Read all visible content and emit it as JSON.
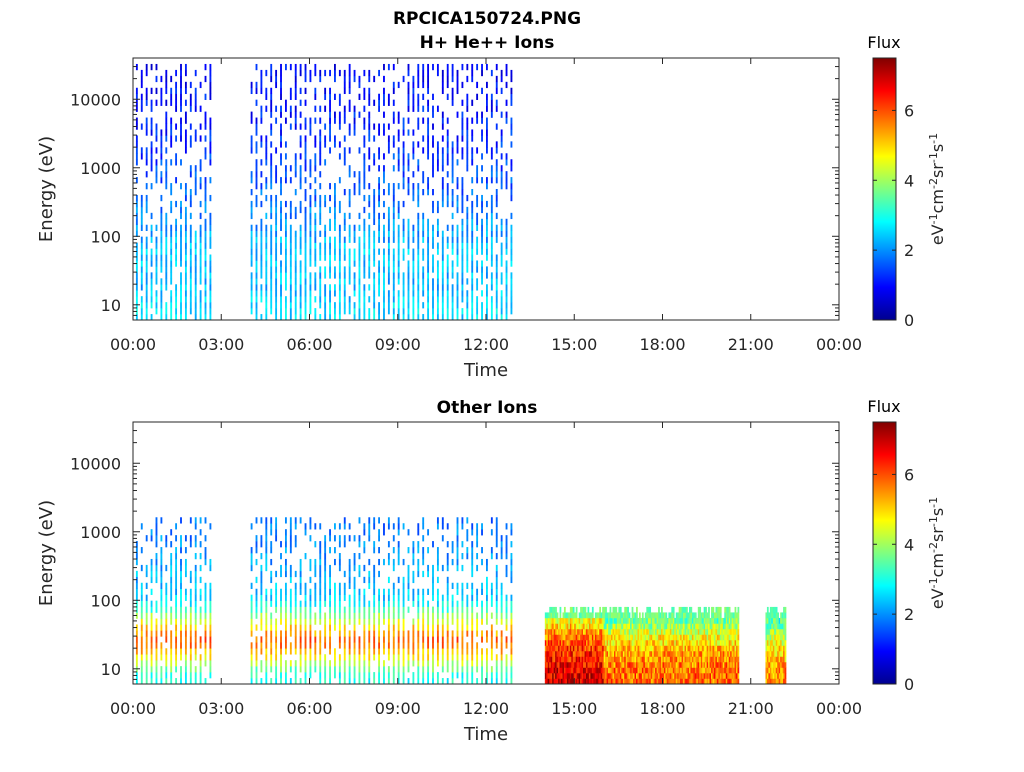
{
  "figure": {
    "title_line1": "RPCICA150724.PNG",
    "title_line2": "H+ He++ Ions"
  },
  "chart_data": [
    {
      "type": "heatmap",
      "title": "H+ He++ Ions",
      "xlabel": "Time",
      "ylabel": "Energy (eV)",
      "x_tick_labels": [
        "00:00",
        "03:00",
        "06:00",
        "09:00",
        "12:00",
        "15:00",
        "18:00",
        "21:00",
        "00:00"
      ],
      "xlim_hours": [
        0,
        24
      ],
      "y_scale": "log",
      "y_tick_values": [
        10,
        100,
        1000,
        10000
      ],
      "y_tick_labels": [
        "10",
        "100",
        "1000",
        "10000"
      ],
      "ylim": [
        6,
        40000
      ],
      "colorbar": {
        "title": "Flux",
        "label": "eV-1cm-2sr-1s-1",
        "ticks": [
          "0",
          "2",
          "4",
          "6"
        ],
        "range": [
          0,
          7.5
        ],
        "colormap": "jet"
      },
      "data_coverage_hours": [
        [
          0.1,
          2.65
        ],
        [
          4.0,
          12.9
        ]
      ],
      "sweep_period_minutes": 10,
      "flux_profile_by_energy": [
        {
          "energy_eV": 8,
          "flux": 2.6
        },
        {
          "energy_eV": 20,
          "flux": 2.3
        },
        {
          "energy_eV": 60,
          "flux": 2.4
        },
        {
          "energy_eV": 120,
          "flux": 2.1
        },
        {
          "energy_eV": 500,
          "flux": 1.6
        },
        {
          "energy_eV": 3000,
          "flux": 1.2
        },
        {
          "energy_eV": 15000,
          "flux": 1.0
        },
        {
          "energy_eV": 35000,
          "flux": 0.9
        }
      ]
    },
    {
      "type": "heatmap",
      "title": "Other Ions",
      "xlabel": "Time",
      "ylabel": "Energy (eV)",
      "x_tick_labels": [
        "00:00",
        "03:00",
        "06:00",
        "09:00",
        "12:00",
        "15:00",
        "18:00",
        "21:00",
        "00:00"
      ],
      "xlim_hours": [
        0,
        24
      ],
      "y_scale": "log",
      "y_tick_values": [
        10,
        100,
        1000,
        10000
      ],
      "y_tick_labels": [
        "10",
        "100",
        "1000",
        "10000"
      ],
      "ylim": [
        6,
        40000
      ],
      "colorbar": {
        "title": "Flux",
        "label": "eV-1cm-2sr-1s-1",
        "ticks": [
          "0",
          "2",
          "4",
          "6"
        ],
        "range": [
          0,
          7.5
        ],
        "colormap": "jet"
      },
      "data_coverage_hours": [
        [
          0.1,
          2.65
        ],
        [
          4.0,
          12.9
        ]
      ],
      "sweep_period_minutes": 10,
      "flux_profile_by_energy": [
        {
          "energy_eV": 8,
          "flux": 3.0
        },
        {
          "energy_eV": 15,
          "flux": 4.8
        },
        {
          "energy_eV": 25,
          "flux": 6.0
        },
        {
          "energy_eV": 40,
          "flux": 5.0
        },
        {
          "energy_eV": 100,
          "flux": 2.5
        },
        {
          "energy_eV": 500,
          "flux": 2.0
        },
        {
          "energy_eV": 1500,
          "flux": 1.8
        }
      ],
      "continuous_blocks": [
        {
          "start_hour": 14.0,
          "end_hour": 16.0,
          "energy_range_eV": [
            6,
            80
          ],
          "flux": 6.8
        },
        {
          "start_hour": 16.0,
          "end_hour": 20.6,
          "energy_range_eV": [
            6,
            80
          ],
          "flux": 5.8
        },
        {
          "start_hour": 21.5,
          "end_hour": 22.2,
          "energy_range_eV": [
            6,
            80
          ],
          "flux": 5.5
        }
      ]
    }
  ]
}
